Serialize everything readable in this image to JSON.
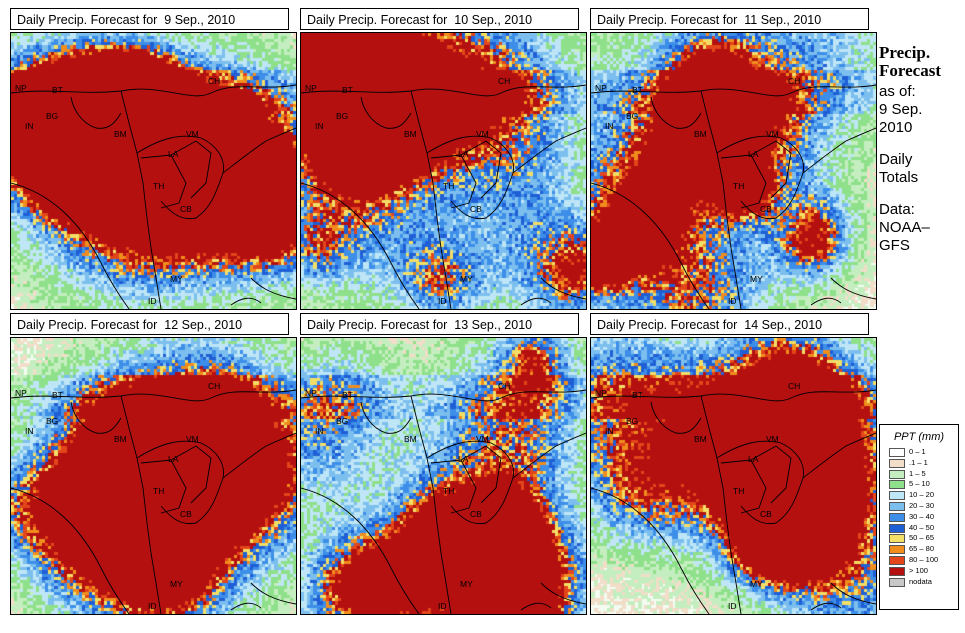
{
  "panels": [
    {
      "title": "Daily Precip. Forecast for  9 Sep., 2010"
    },
    {
      "title": "Daily Precip. Forecast for  10 Sep., 2010"
    },
    {
      "title": "Daily Precip. Forecast for  11 Sep., 2010"
    },
    {
      "title": "Daily Precip. Forecast for  12 Sep., 2010"
    },
    {
      "title": "Daily Precip. Forecast for  13 Sep., 2010"
    },
    {
      "title": "Daily Precip. Forecast for  14 Sep., 2010"
    }
  ],
  "country_labels": [
    "NP",
    "BT",
    "BG",
    "IN",
    "BM",
    "VM",
    "CH",
    "LA",
    "TH",
    "CB",
    "MY",
    "ID"
  ],
  "side": {
    "line1": "Precip.",
    "line2": "Forecast",
    "line3": "as of:",
    "line4": "9 Sep.",
    "line5": "2010",
    "line6": "Daily",
    "line7": "Totals",
    "line8": "Data:",
    "line9": "NOAA–",
    "line10": "GFS"
  },
  "legend": {
    "title": "PPT (mm)",
    "items": [
      {
        "label": "0 – 1",
        "color": "#ffffff"
      },
      {
        "label": ".1 – 1",
        "color": "#f1ddc8"
      },
      {
        "label": "1 – 5",
        "color": "#c4eec0"
      },
      {
        "label": "5 – 10",
        "color": "#8fe08a"
      },
      {
        "label": "10 – 20",
        "color": "#bfe6f6"
      },
      {
        "label": "20 – 30",
        "color": "#7cbfee"
      },
      {
        "label": "30 – 40",
        "color": "#3d8ee9"
      },
      {
        "label": "40 – 50",
        "color": "#1f5fd6"
      },
      {
        "label": "50 – 65",
        "color": "#f4df66"
      },
      {
        "label": "65 – 80",
        "color": "#f08d1c"
      },
      {
        "label": "80 – 100",
        "color": "#e2461a"
      },
      {
        "label": "> 100",
        "color": "#b51010"
      },
      {
        "label": "nodata",
        "color": "#c8c8c8"
      }
    ]
  }
}
